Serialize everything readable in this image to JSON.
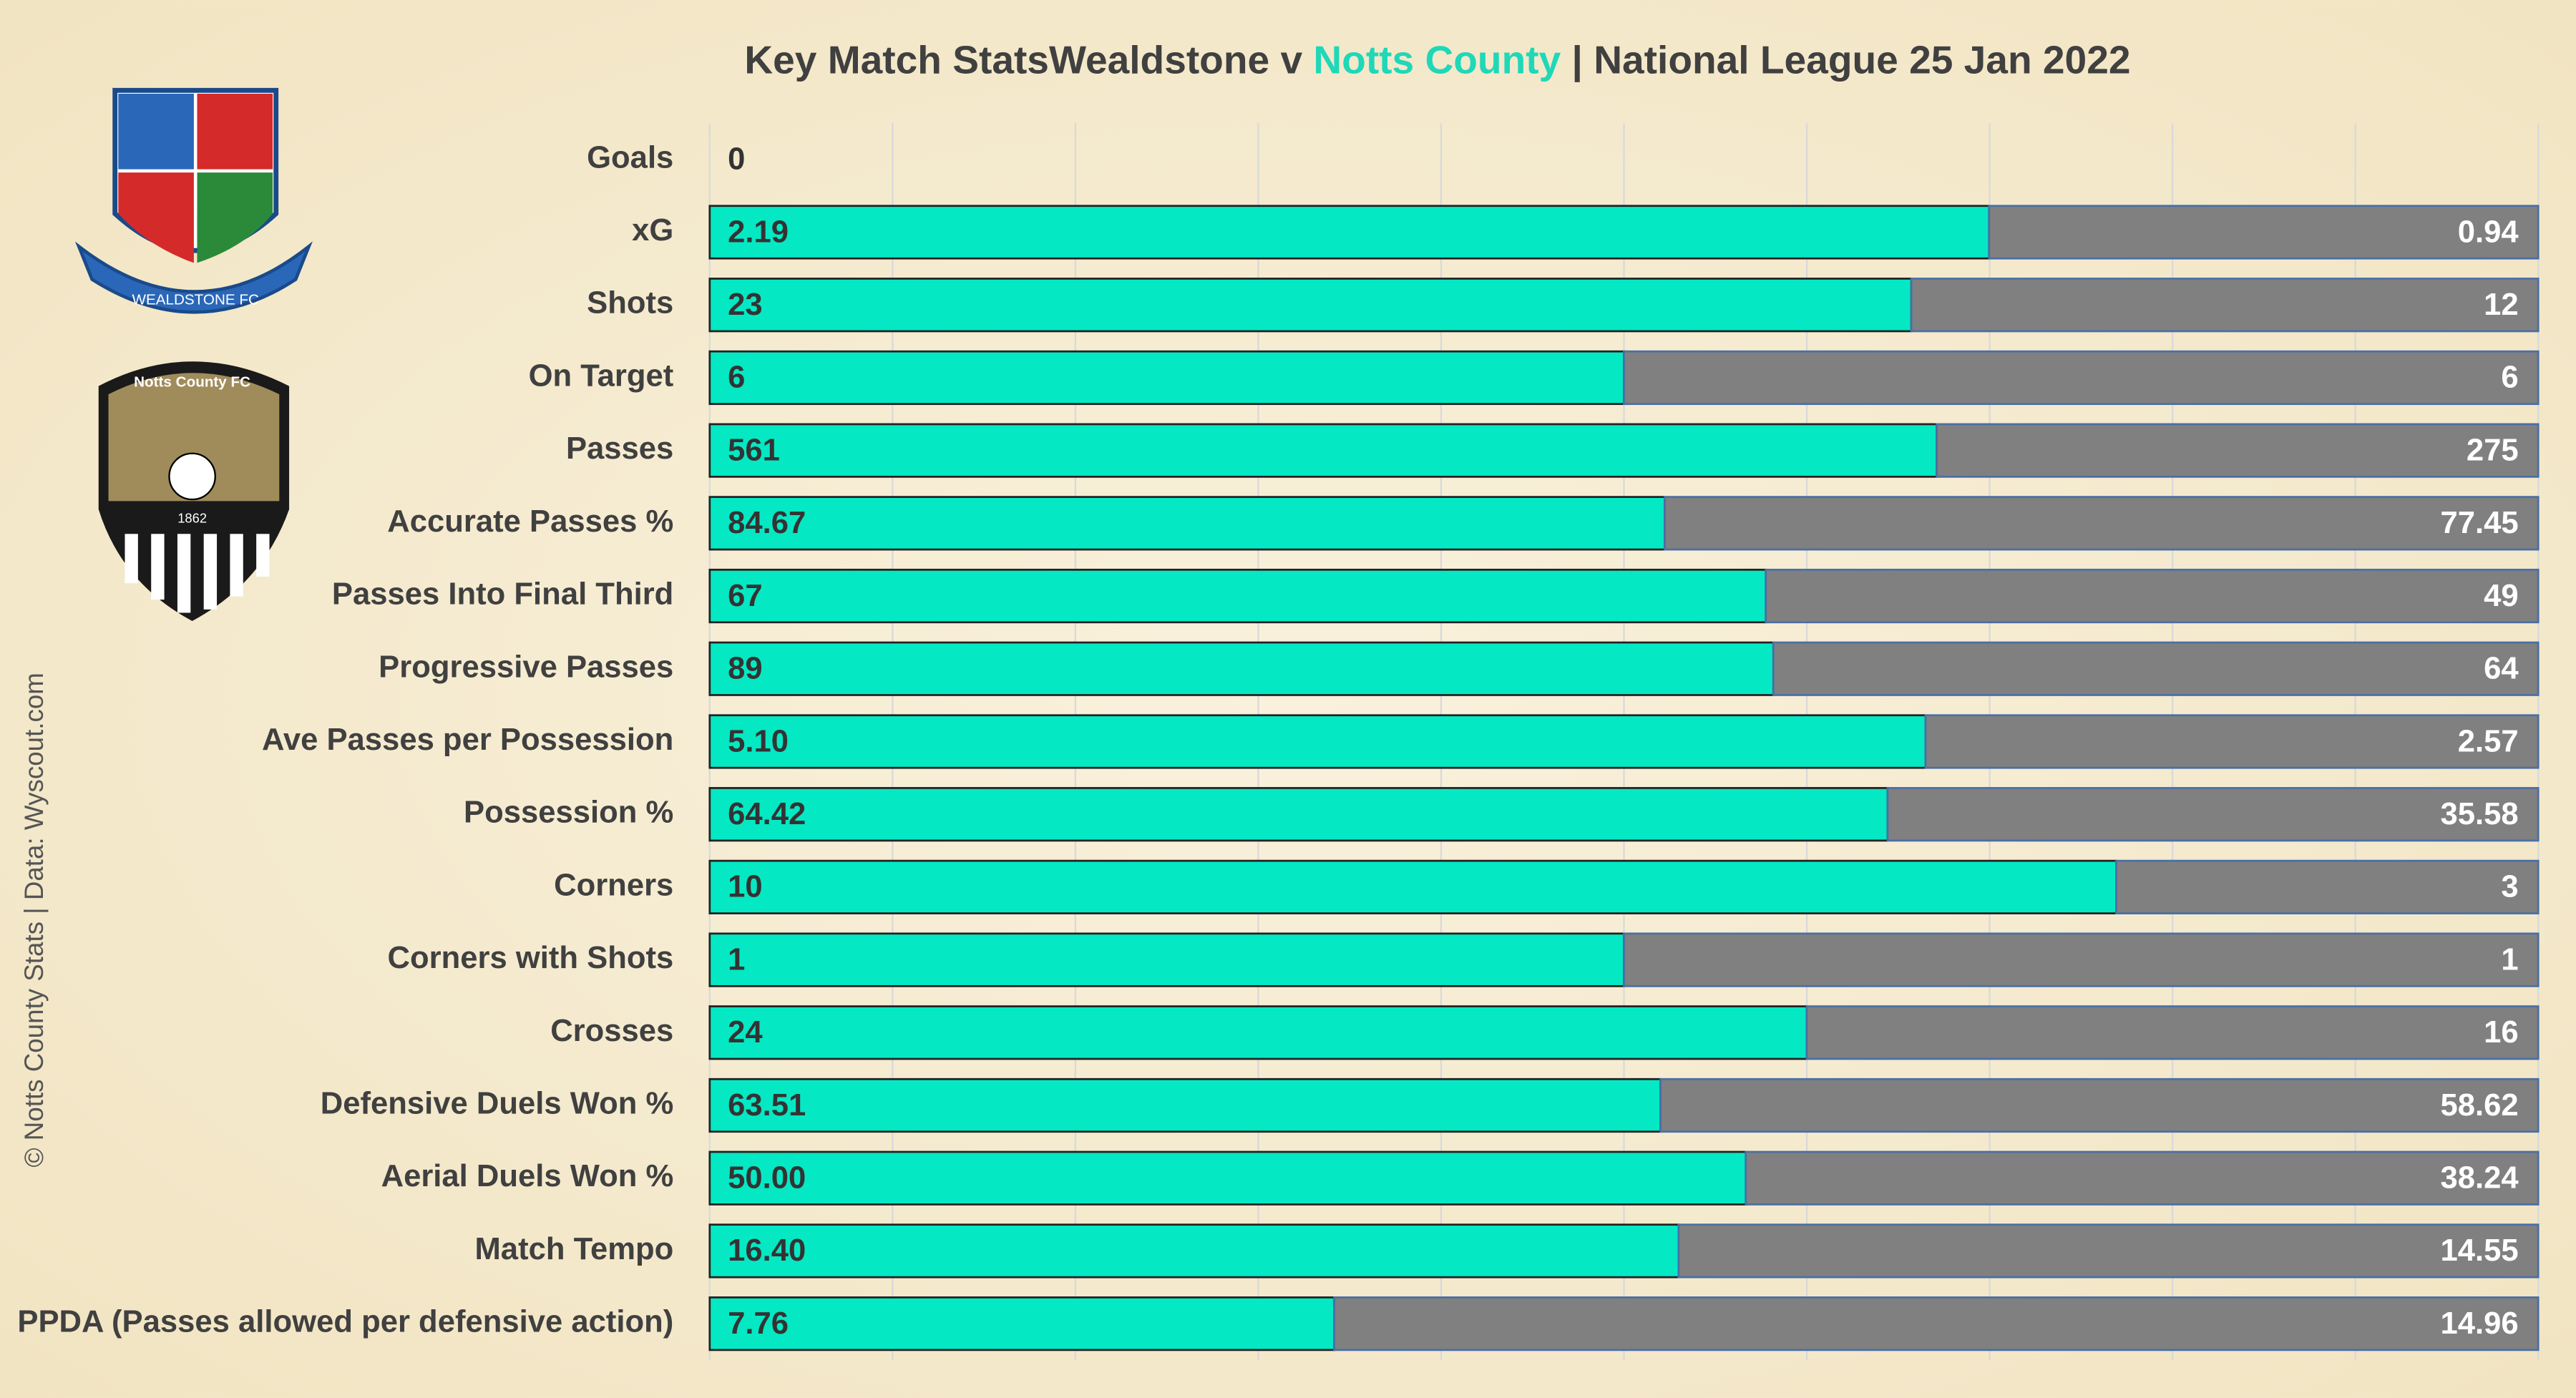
{
  "chart_data": {
    "type": "bar",
    "orientation": "horizontal",
    "stacking": "percent",
    "title_parts": [
      "Key Match StatsWealdstone v ",
      "Notts County",
      " | National League 25 Jan 2022"
    ],
    "title_colors": [
      "#404040",
      "#1ed8b8",
      "#404040"
    ],
    "side_note": "© Notts County Stats | Data: Wyscout.com",
    "logos": {
      "home": "WEALDSTONE FC",
      "away": "Notts County FC",
      "away_year": "1862"
    },
    "categories": [
      "Goals",
      "xG",
      "Shots",
      "On Target",
      "Passes",
      "Accurate Passes %",
      "Passes Into Final Third",
      "Progressive Passes",
      "Ave Passes per Possession",
      "Possession %",
      "Corners",
      "Corners with Shots",
      "Crosses",
      "Defensive Duels Won %",
      "Aerial Duels Won %",
      "Match Tempo",
      "PPDA (Passes allowed per defensive action)"
    ],
    "series": [
      {
        "name": "Notts County",
        "color": "#05e8c4",
        "values": [
          0,
          2.19,
          23,
          6,
          561,
          84.67,
          67,
          89,
          5.1,
          64.42,
          10,
          1,
          24,
          63.51,
          50,
          16.4,
          7.76
        ],
        "value_labels": [
          "0",
          "2.19",
          "23",
          "6",
          "561",
          "84.67",
          "67",
          "89",
          "5.10",
          "64.42",
          "10",
          "1",
          "24",
          "63.51",
          "50.00",
          "16.40",
          "7.76"
        ]
      },
      {
        "name": "Wealdstone",
        "color": "#808080",
        "values": [
          null,
          0.94,
          12,
          6,
          275,
          77.45,
          49,
          64,
          2.57,
          35.58,
          3,
          1,
          16,
          58.62,
          38.24,
          14.55,
          14.96
        ],
        "value_labels": [
          null,
          "0.94",
          "12",
          "6",
          "275",
          "77.45",
          "49",
          "64",
          "2.57",
          "35.58",
          "3",
          "1",
          "16",
          "58.62",
          "38.24",
          "14.55",
          "14.96"
        ]
      }
    ],
    "xlim": [
      0,
      100
    ],
    "xticks": [
      0,
      10,
      20,
      30,
      40,
      50,
      60,
      70,
      80,
      90,
      100
    ],
    "grid": true
  }
}
